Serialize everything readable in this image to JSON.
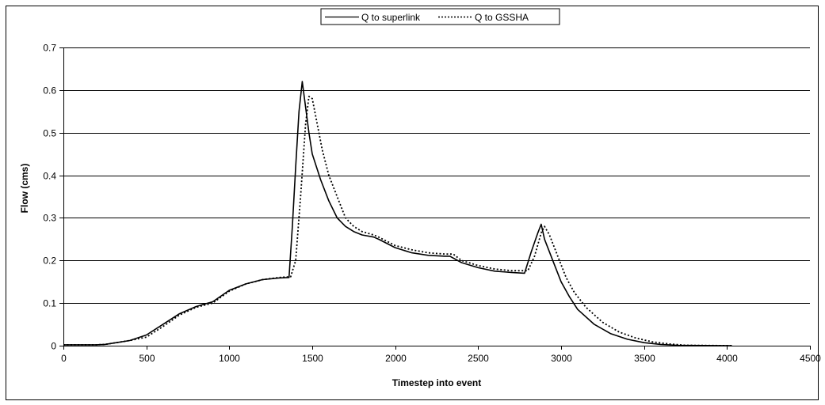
{
  "chart_data": {
    "type": "line",
    "xlabel": "Timestep into event",
    "ylabel": "Flow (cms)",
    "xlim": [
      0,
      4500
    ],
    "ylim": [
      0,
      0.7
    ],
    "x_ticks": [
      0,
      500,
      1000,
      1500,
      2000,
      2500,
      3000,
      3500,
      4000,
      4500
    ],
    "y_ticks": [
      0,
      0.1,
      0.2,
      0.3,
      0.4,
      0.5,
      0.6,
      0.7
    ],
    "x_tick_labels": [
      "0",
      "500",
      "1000",
      "1500",
      "2000",
      "2500",
      "3000",
      "3500",
      "4000",
      "4500"
    ],
    "y_tick_labels": [
      "0",
      "0.1",
      "0.2",
      "0.3",
      "0.4",
      "0.5",
      "0.6",
      "0.7"
    ],
    "grid": "horizontal",
    "legend_position": "top-center",
    "series": [
      {
        "name": "Q to superlink",
        "style": "solid",
        "color": "#000000",
        "points": [
          [
            0,
            0.002
          ],
          [
            200,
            0.002
          ],
          [
            250,
            0.003
          ],
          [
            300,
            0.006
          ],
          [
            400,
            0.012
          ],
          [
            500,
            0.025
          ],
          [
            600,
            0.05
          ],
          [
            700,
            0.075
          ],
          [
            800,
            0.092
          ],
          [
            900,
            0.103
          ],
          [
            1000,
            0.13
          ],
          [
            1100,
            0.145
          ],
          [
            1200,
            0.155
          ],
          [
            1300,
            0.159
          ],
          [
            1360,
            0.16
          ],
          [
            1380,
            0.28
          ],
          [
            1400,
            0.42
          ],
          [
            1420,
            0.55
          ],
          [
            1440,
            0.62
          ],
          [
            1460,
            0.56
          ],
          [
            1480,
            0.5
          ],
          [
            1500,
            0.45
          ],
          [
            1550,
            0.39
          ],
          [
            1600,
            0.34
          ],
          [
            1650,
            0.3
          ],
          [
            1700,
            0.28
          ],
          [
            1750,
            0.268
          ],
          [
            1800,
            0.26
          ],
          [
            1870,
            0.255
          ],
          [
            1900,
            0.25
          ],
          [
            2000,
            0.23
          ],
          [
            2100,
            0.218
          ],
          [
            2200,
            0.212
          ],
          [
            2300,
            0.21
          ],
          [
            2330,
            0.21
          ],
          [
            2400,
            0.195
          ],
          [
            2500,
            0.183
          ],
          [
            2600,
            0.175
          ],
          [
            2700,
            0.172
          ],
          [
            2780,
            0.17
          ],
          [
            2820,
            0.22
          ],
          [
            2860,
            0.265
          ],
          [
            2880,
            0.285
          ],
          [
            2900,
            0.25
          ],
          [
            2950,
            0.2
          ],
          [
            3000,
            0.15
          ],
          [
            3050,
            0.115
          ],
          [
            3100,
            0.085
          ],
          [
            3200,
            0.05
          ],
          [
            3300,
            0.028
          ],
          [
            3400,
            0.015
          ],
          [
            3500,
            0.007
          ],
          [
            3600,
            0.003
          ],
          [
            3700,
            0.001
          ],
          [
            4030,
            0.0
          ]
        ]
      },
      {
        "name": "Q to GSSHA",
        "style": "dotted",
        "color": "#000000",
        "points": [
          [
            0,
            0.002
          ],
          [
            200,
            0.002
          ],
          [
            250,
            0.003
          ],
          [
            300,
            0.006
          ],
          [
            400,
            0.012
          ],
          [
            500,
            0.02
          ],
          [
            600,
            0.045
          ],
          [
            700,
            0.072
          ],
          [
            800,
            0.09
          ],
          [
            900,
            0.1
          ],
          [
            1000,
            0.128
          ],
          [
            1100,
            0.145
          ],
          [
            1200,
            0.155
          ],
          [
            1300,
            0.16
          ],
          [
            1370,
            0.162
          ],
          [
            1400,
            0.2
          ],
          [
            1430,
            0.35
          ],
          [
            1460,
            0.52
          ],
          [
            1480,
            0.585
          ],
          [
            1500,
            0.58
          ],
          [
            1530,
            0.52
          ],
          [
            1560,
            0.46
          ],
          [
            1600,
            0.4
          ],
          [
            1650,
            0.35
          ],
          [
            1700,
            0.3
          ],
          [
            1750,
            0.28
          ],
          [
            1800,
            0.268
          ],
          [
            1870,
            0.26
          ],
          [
            1900,
            0.255
          ],
          [
            2000,
            0.235
          ],
          [
            2100,
            0.225
          ],
          [
            2200,
            0.218
          ],
          [
            2300,
            0.215
          ],
          [
            2350,
            0.215
          ],
          [
            2400,
            0.2
          ],
          [
            2500,
            0.188
          ],
          [
            2600,
            0.18
          ],
          [
            2700,
            0.176
          ],
          [
            2800,
            0.176
          ],
          [
            2840,
            0.21
          ],
          [
            2880,
            0.265
          ],
          [
            2900,
            0.28
          ],
          [
            2930,
            0.26
          ],
          [
            2980,
            0.21
          ],
          [
            3030,
            0.16
          ],
          [
            3080,
            0.125
          ],
          [
            3150,
            0.09
          ],
          [
            3250,
            0.055
          ],
          [
            3350,
            0.032
          ],
          [
            3450,
            0.018
          ],
          [
            3550,
            0.009
          ],
          [
            3650,
            0.004
          ],
          [
            3750,
            0.001
          ],
          [
            4030,
            0.0
          ]
        ]
      }
    ]
  }
}
